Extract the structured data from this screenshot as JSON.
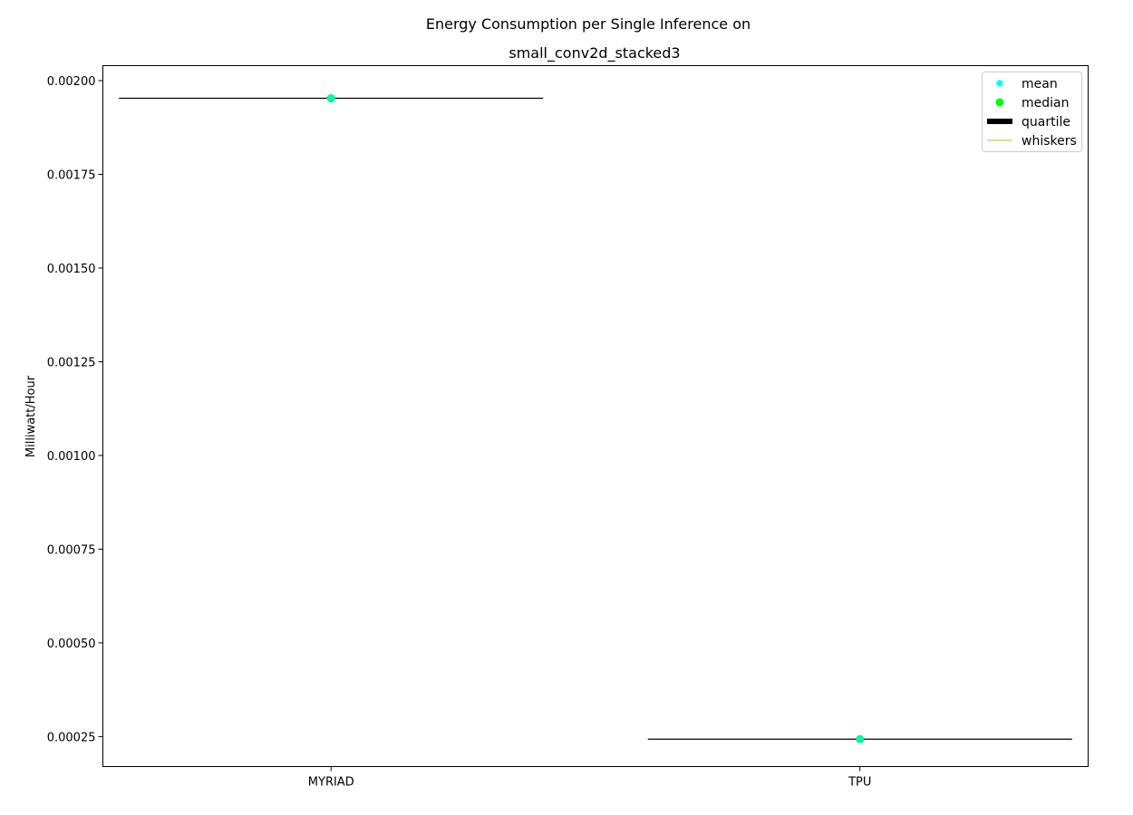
{
  "chart_data": {
    "type": "violin",
    "title_line1": "Energy Consumption per Single Inference on",
    "title_line2": "small_conv2d_stacked3",
    "xlabel": "",
    "ylabel": "Milliwatt/Hour",
    "categories": [
      "MYRIAD",
      "TPU"
    ],
    "ylim": [
      0.00017,
      0.00204
    ],
    "yticks": [
      0.00025,
      0.0005,
      0.00075,
      0.001,
      0.00125,
      0.0015,
      0.00175,
      0.002
    ],
    "ytick_labels": [
      "0.00025",
      "0.00050",
      "0.00075",
      "0.00100",
      "0.00125",
      "0.00150",
      "0.00175",
      "0.00200"
    ],
    "series": [
      {
        "category": "MYRIAD",
        "mean": 0.001953,
        "median": 0.001953,
        "min": 0.001953,
        "max": 0.001953
      },
      {
        "category": "TPU",
        "mean": 0.000243,
        "median": 0.000243,
        "min": 0.000243,
        "max": 0.000243
      }
    ],
    "legend": {
      "placement": "top-right",
      "entries": [
        {
          "label": "mean",
          "kind": "dot",
          "color": "#00ffff"
        },
        {
          "label": "median",
          "kind": "dot",
          "color": "#00ff00"
        },
        {
          "label": "quartile",
          "kind": "thick-line",
          "color": "#000000"
        },
        {
          "label": "whiskers",
          "kind": "thin-line",
          "color": "#bfbf00"
        }
      ]
    },
    "colors": {
      "mean": "#00ffff",
      "median": "#00ff00",
      "marker": "#00f5c0",
      "body_line": "#000000",
      "whiskers": "#bfbf00"
    },
    "grid": false
  }
}
